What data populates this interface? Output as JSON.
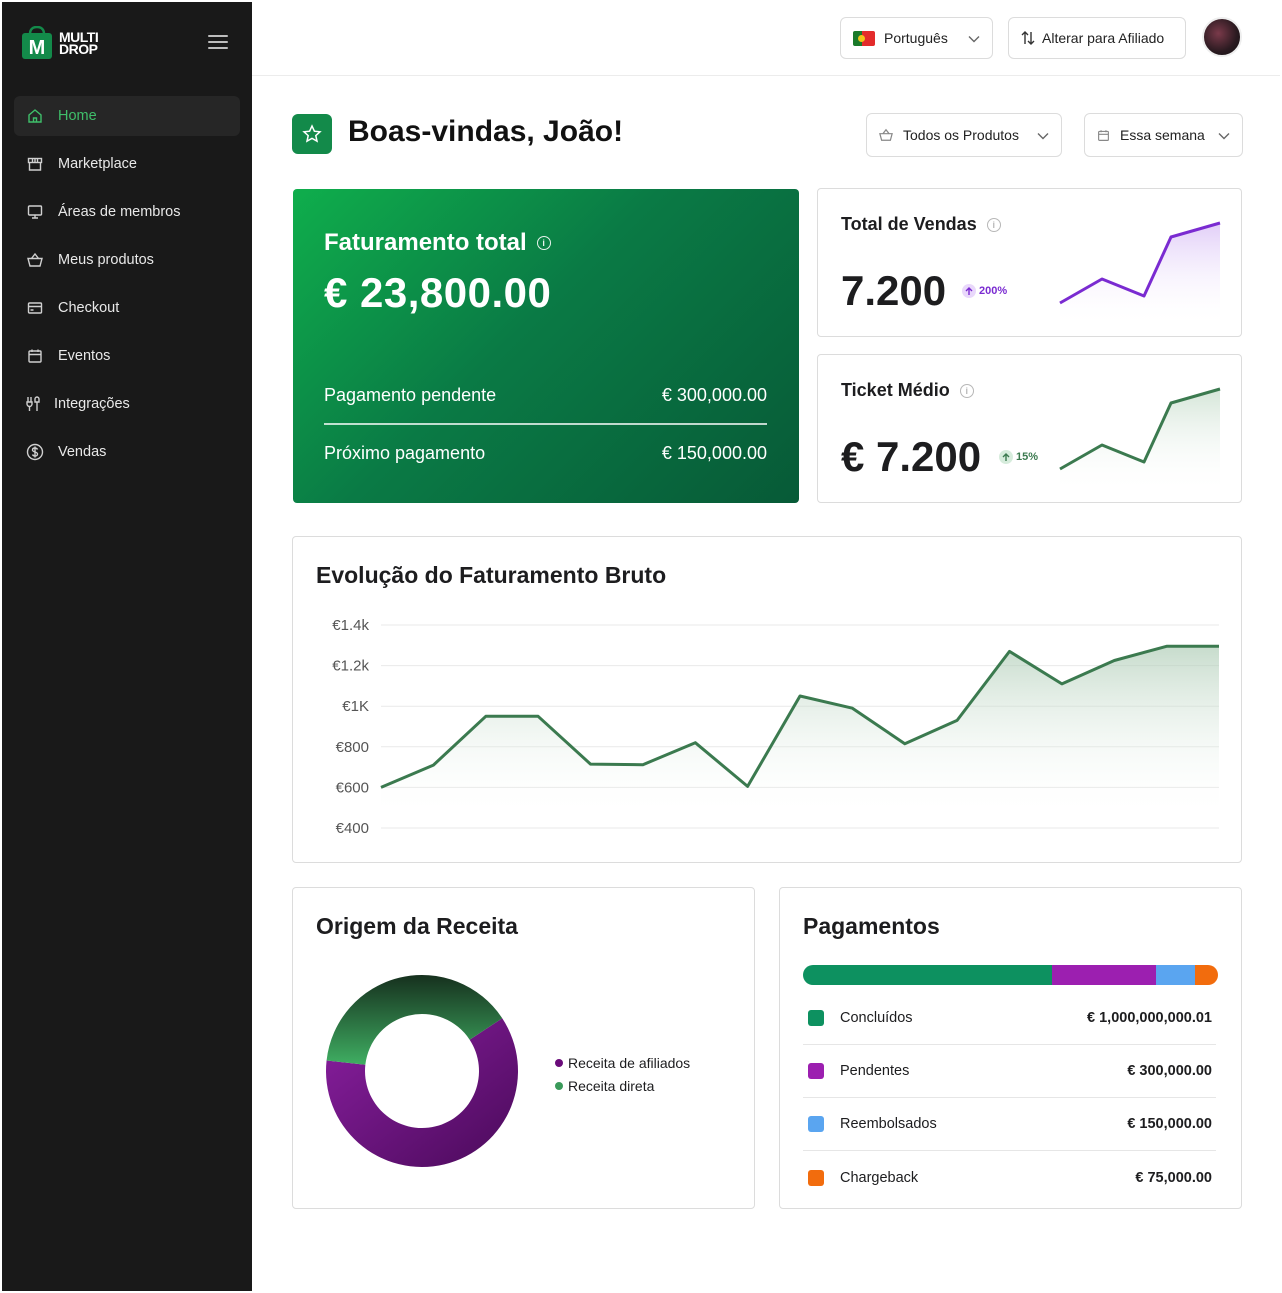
{
  "brand": {
    "line1": "MULTI",
    "line2": "DROP",
    "color": "#138a4a"
  },
  "sidebar": {
    "items": [
      {
        "label": "Home",
        "icon": "home-icon",
        "active": true
      },
      {
        "label": "Marketplace",
        "icon": "store-icon"
      },
      {
        "label": "Áreas de membros",
        "icon": "monitor-icon"
      },
      {
        "label": "Meus produtos",
        "icon": "basket-icon"
      },
      {
        "label": "Checkout",
        "icon": "card-icon"
      },
      {
        "label": "Eventos",
        "icon": "calendar-icon"
      },
      {
        "label": "Integrações",
        "icon": "plug-icon"
      },
      {
        "label": "Vendas",
        "icon": "dollar-icon"
      }
    ]
  },
  "topbar": {
    "language": "Português",
    "switch_label": "Alterar para Afiliado"
  },
  "header": {
    "welcome": "Boas-vindas, João!",
    "product_filter": "Todos os Produtos",
    "period_filter": "Essa semana"
  },
  "faturamento": {
    "title": "Faturamento total",
    "value": "€ 23,800.00",
    "pending_label": "Pagamento pendente",
    "pending_value": "€ 300,000.00",
    "next_label": "Próximo pagamento",
    "next_value": "€ 150,000.00"
  },
  "kpis": {
    "vendas": {
      "title": "Total de Vendas",
      "value": "7.200",
      "change": "200%",
      "color": "#7a2bd1"
    },
    "ticket": {
      "title": "Ticket Médio",
      "value": "€ 7.200",
      "change": "15%",
      "color": "#3b7a4f"
    }
  },
  "chart_data": [
    {
      "type": "area",
      "title": "Evolução do Faturamento Bruto",
      "y_ticks": [
        "€1.4k",
        "€1.2k",
        "€1K",
        "€800",
        "€600",
        "€400"
      ],
      "ylim": [
        400,
        1400
      ],
      "values": [
        600,
        710,
        950,
        950,
        715,
        712,
        820,
        605,
        1050,
        990,
        815,
        930,
        1270,
        1110,
        1225,
        1295,
        1295
      ],
      "color": "#3b7a4f"
    },
    {
      "type": "pie",
      "title": "Origem da Receita",
      "series": [
        {
          "name": "Receita de afiliados",
          "value": 61,
          "color": "#6a0c7a"
        },
        {
          "name": "Receita direta",
          "value": 39,
          "color": "#3a9a5a"
        }
      ]
    }
  ],
  "pagamentos": {
    "title": "Pagamentos",
    "rows": [
      {
        "label": "Concluídos",
        "value": "€ 1,000,000,000.01",
        "color": "#0d9160",
        "share": 0.6
      },
      {
        "label": "Pendentes",
        "value": "€ 300,000.00",
        "color": "#9c1fb0",
        "share": 0.25
      },
      {
        "label": "Reembolsados",
        "value": "€ 150,000.00",
        "color": "#5aa5f0",
        "share": 0.095
      },
      {
        "label": "Chargeback",
        "value": "€ 75,000.00",
        "color": "#f26c0d",
        "share": 0.055
      }
    ]
  }
}
